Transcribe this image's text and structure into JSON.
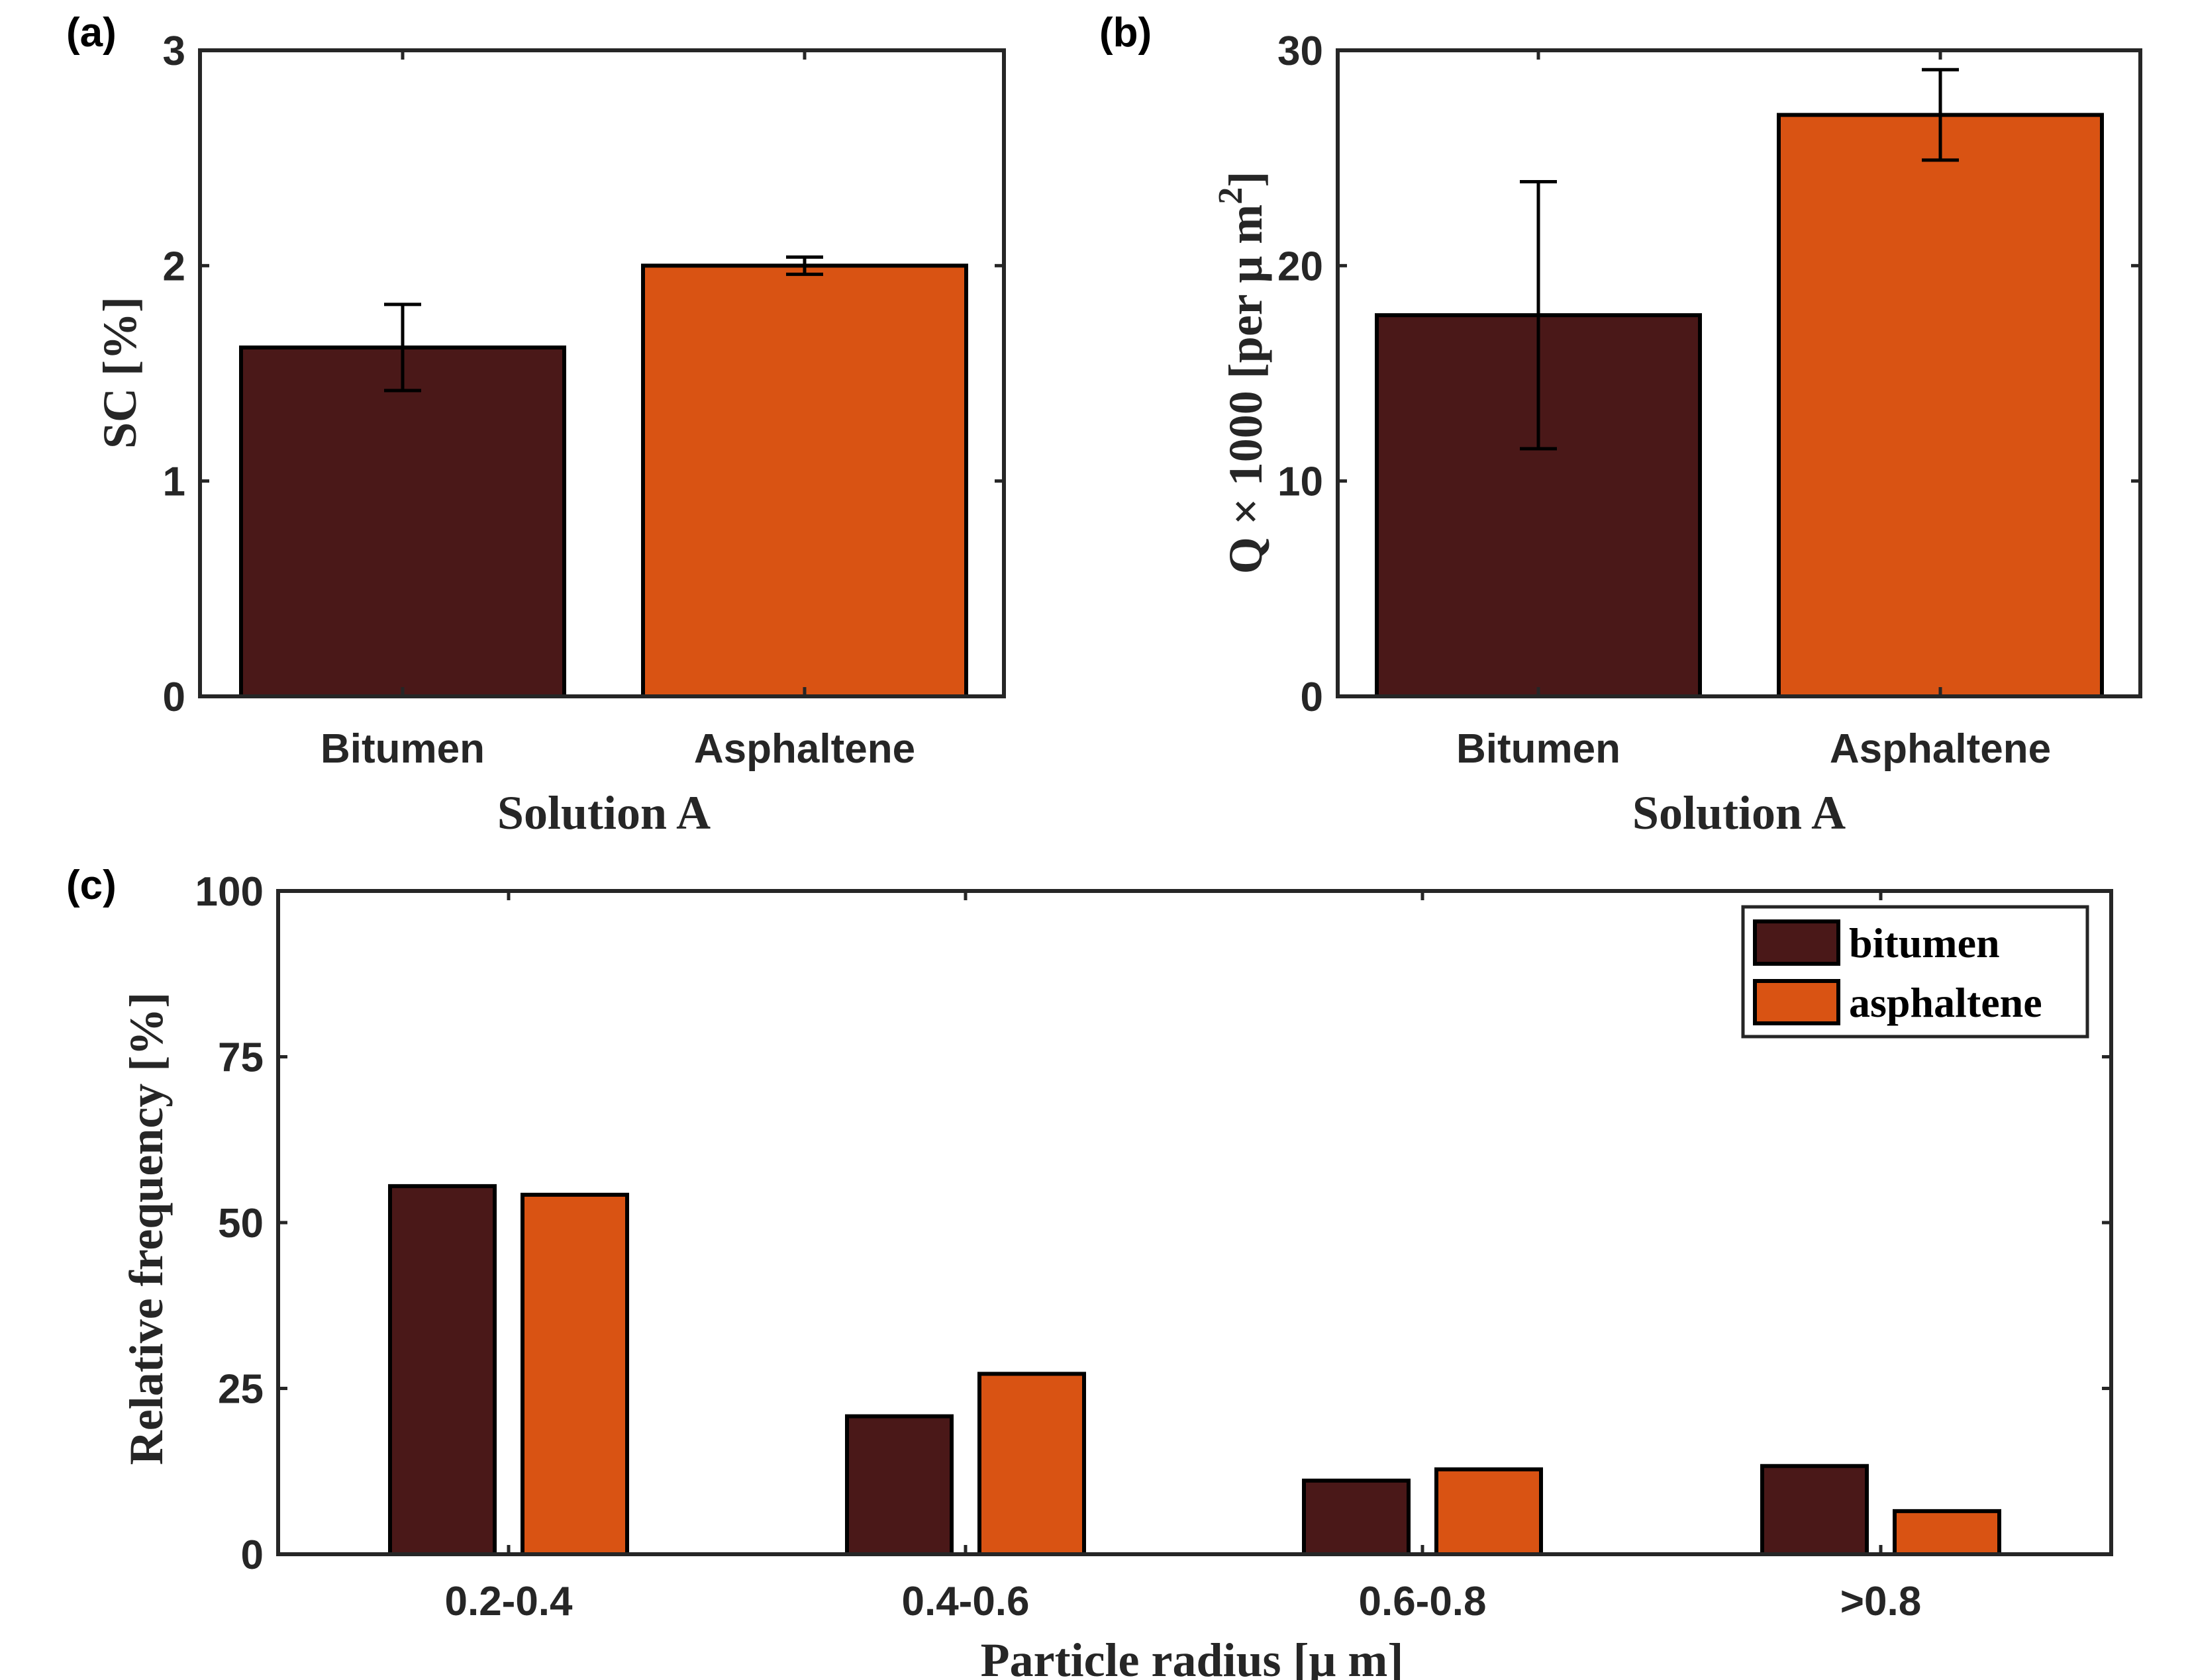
{
  "colors": {
    "bitumen": "#4a1818",
    "asphaltene": "#d95313",
    "axis": "#262626",
    "bar_edge": "#000000"
  },
  "chart_data": [
    {
      "id": "a",
      "type": "bar",
      "panel_label": "(a)",
      "categories": [
        "Bitumen",
        "Asphaltene"
      ],
      "values": [
        1.62,
        2.0
      ],
      "errors": [
        0.2,
        0.04
      ],
      "ylim": [
        0,
        3
      ],
      "yticks": [
        "0",
        "1",
        "2",
        "3"
      ],
      "xlabel": "Solution A",
      "ylabel": "SC [%]",
      "grid": false
    },
    {
      "id": "b",
      "type": "bar",
      "panel_label": "(b)",
      "categories": [
        "Bitumen",
        "Asphaltene"
      ],
      "values": [
        17.7,
        27.0
      ],
      "errors": [
        6.2,
        2.1
      ],
      "ylim": [
        0,
        30
      ],
      "yticks": [
        "0",
        "10",
        "20",
        "30"
      ],
      "xlabel": "Solution A",
      "ylabel": "Q × 1000 [per μ m²]",
      "ylabel_parts": {
        "main": "Q × 1000 [per μ m",
        "sup": "2",
        "end": "]"
      },
      "grid": false
    },
    {
      "id": "c",
      "type": "bar",
      "panel_label": "(c)",
      "categories": [
        "0.2-0.4",
        "0.4-0.6",
        "0.6-0.8",
        ">0.8"
      ],
      "series": [
        {
          "name": "bitumen",
          "values": [
            55.5,
            20.8,
            11.1,
            13.3
          ]
        },
        {
          "name": "asphaltene",
          "values": [
            54.2,
            27.2,
            12.8,
            6.5
          ]
        }
      ],
      "ylim": [
        0,
        100
      ],
      "yticks": [
        "0",
        "25",
        "50",
        "75",
        "100"
      ],
      "xlabel": "Particle radius [μ m]",
      "ylabel": "Relative frequency [%]",
      "legend": "top-right",
      "grid": false
    }
  ]
}
